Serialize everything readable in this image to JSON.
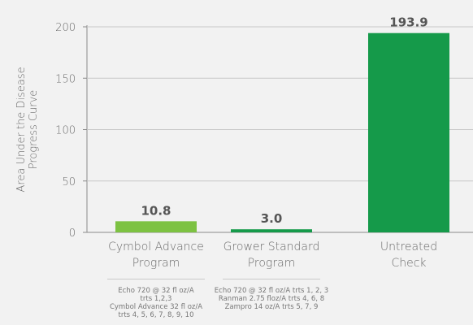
{
  "chart_data": {
    "type": "bar",
    "title": "",
    "xlabel": "",
    "ylabel": "Area Under the Disease Progress Curve",
    "ylabel_lines": [
      "Area Under the Disease",
      "Progress Curve"
    ],
    "ylim": [
      0,
      200
    ],
    "yticks": [
      0,
      50,
      100,
      150,
      200
    ],
    "grid": true,
    "categories": [
      "Cymbol Advance Program",
      "Grower Standard Program",
      "Untreated Check"
    ],
    "category_lines": [
      [
        "Cymbol Advance",
        "Program"
      ],
      [
        "Grower Standard",
        "Program"
      ],
      [
        "Untreated",
        "Check"
      ]
    ],
    "values": [
      10.8,
      3.0,
      193.9
    ],
    "value_labels": [
      "10.8",
      "3.0",
      "193.9"
    ],
    "colors": [
      "#7dc242",
      "#159a4a",
      "#159a4a"
    ],
    "notes": [
      [
        "Echo 720 @ 32 fl oz/A",
        "trts 1,2,3",
        "Cymbol Advance 32 fl oz/A",
        "trts 4, 5, 6, 7, 8, 9, 10"
      ],
      [
        "Echo 720 @ 32 fl oz/A trts 1, 2, 3",
        "Ranman 2.75 floz/A trts 4, 6, 8",
        "Zampro 14 oz/A trts  5, 7, 9"
      ],
      []
    ]
  }
}
